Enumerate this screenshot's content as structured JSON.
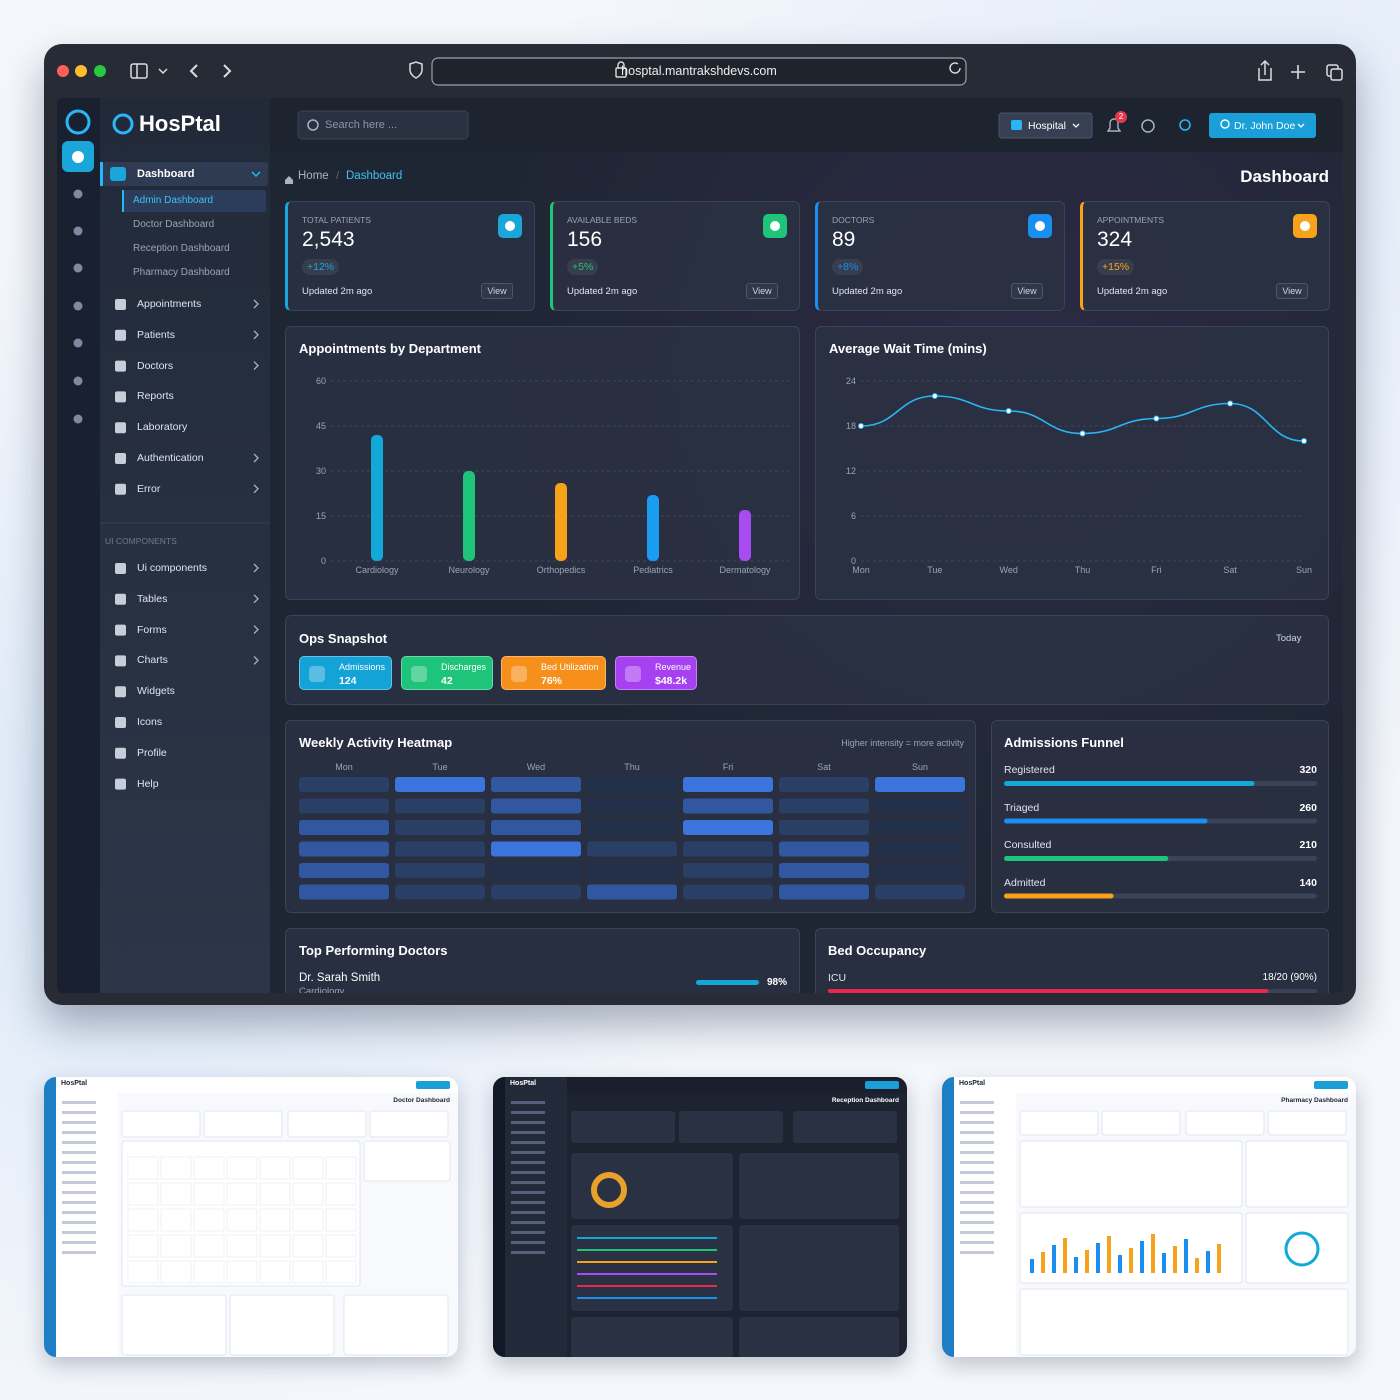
{
  "browser": {
    "url": "hosptal.mantrakshdevs.com"
  },
  "brand": "HosPtal",
  "sidebar": {
    "active": "Dashboard",
    "submenu": [
      "Admin Dashboard",
      "Doctor Dashboard",
      "Reception Dashboard",
      "Pharmacy Dashboard"
    ],
    "menu": [
      "Appointments",
      "Patients",
      "Doctors",
      "Reports",
      "Laboratory",
      "Authentication",
      "Error"
    ],
    "section": "UI COMPONENTS",
    "components": [
      "Ui components",
      "Tables",
      "Forms",
      "Charts",
      "Widgets",
      "Icons",
      "Profile",
      "Help"
    ]
  },
  "topbar": {
    "search": "Search here ...",
    "selector": "Hospital",
    "notifications": 2,
    "user": "Dr. John Doe"
  },
  "breadcrumb": [
    "Home",
    "Dashboard"
  ],
  "page_title": "Dashboard",
  "stats": [
    {
      "label": "TOTAL PATIENTS",
      "value": "2,543",
      "change": "+12%",
      "updated": "Updated 2m ago",
      "action": "View",
      "color": "#1aa6d9"
    },
    {
      "label": "AVAILABLE BEDS",
      "value": "156",
      "change": "+5%",
      "updated": "Updated 2m ago",
      "action": "View",
      "color": "#1ec47a"
    },
    {
      "label": "DOCTORS",
      "value": "89",
      "change": "+8%",
      "updated": "Updated 2m ago",
      "action": "View",
      "color": "#1a8ff0"
    },
    {
      "label": "APPOINTMENTS",
      "value": "324",
      "change": "+15%",
      "updated": "Updated 2m ago",
      "action": "View",
      "color": "#f7a21b"
    }
  ],
  "appointments_chart": {
    "type": "bar",
    "title": "Appointments by Department",
    "categories": [
      "Cardiology",
      "Neurology",
      "Orthopedics",
      "Pediatrics",
      "Dermatology"
    ],
    "values": [
      42,
      30,
      26,
      22,
      17
    ],
    "colors": [
      "#12a9d9",
      "#1ec47a",
      "#f7a21b",
      "#1a9cf0",
      "#a64cf0"
    ],
    "ylim": [
      0,
      60
    ],
    "yticks": [
      0,
      15,
      30,
      45,
      60
    ],
    "grid": true
  },
  "wait_chart": {
    "type": "line",
    "title": "Average Wait Time (mins)",
    "categories": [
      "Mon",
      "Tue",
      "Wed",
      "Thu",
      "Fri",
      "Sat",
      "Sun"
    ],
    "values": [
      18,
      22,
      20,
      17,
      19,
      21,
      16
    ],
    "color": "#29b6f6",
    "ylim": [
      0,
      24
    ],
    "yticks": [
      0,
      6,
      12,
      18,
      24
    ],
    "grid": true
  },
  "ops": {
    "title": "Ops Snapshot",
    "period": "Today",
    "items": [
      {
        "label": "Admissions",
        "value": "124",
        "color": "#14a3d6"
      },
      {
        "label": "Discharges",
        "value": "42",
        "color": "#1ec47a"
      },
      {
        "label": "Bed Utilization",
        "value": "76%",
        "color": "#f78f1b"
      },
      {
        "label": "Revenue",
        "value": "$48.2k",
        "color": "#a640f0"
      }
    ]
  },
  "heatmap": {
    "title": "Weekly Activity Heatmap",
    "note": "Higher intensity = more activity",
    "days": [
      "Mon",
      "Tue",
      "Wed",
      "Thu",
      "Fri",
      "Sat",
      "Sun"
    ],
    "values": [
      [
        2,
        4,
        3,
        1,
        4,
        2,
        4
      ],
      [
        2,
        2,
        3,
        1,
        3,
        2,
        1
      ],
      [
        3,
        2,
        3,
        1,
        4,
        2,
        1
      ],
      [
        3,
        2,
        4,
        2,
        2,
        3,
        1
      ],
      [
        3,
        2,
        1,
        1,
        2,
        3,
        1
      ],
      [
        3,
        2,
        2,
        3,
        2,
        3,
        2
      ]
    ]
  },
  "funnel": {
    "title": "Admissions Funnel",
    "xlim": [
      0,
      400
    ],
    "stages": [
      {
        "name": "Registered",
        "value": 320,
        "color": "#12a9d9"
      },
      {
        "name": "Triaged",
        "value": 260,
        "color": "#1a8ff0"
      },
      {
        "name": "Consulted",
        "value": 210,
        "color": "#1ec47a"
      },
      {
        "name": "Admitted",
        "value": 140,
        "color": "#f7a21b"
      }
    ]
  },
  "top_doctors": {
    "title": "Top Performing Doctors",
    "doctors": [
      {
        "name": "Dr. Sarah Smith",
        "department": "Cardiology",
        "value": 98,
        "value_label": "98%"
      }
    ]
  },
  "bed_occupancy": {
    "title": "Bed Occupancy",
    "wards": [
      {
        "name": "ICU",
        "value": 90,
        "value_label": "18/20 (90%)"
      }
    ]
  },
  "previews": [
    {
      "brand": "HosPtal",
      "title": "Doctor Dashboard",
      "theme": "light"
    },
    {
      "brand": "HosPtal",
      "title": "Reception Dashboard",
      "theme": "dark"
    },
    {
      "brand": "HosPtal",
      "title": "Pharmacy Dashboard",
      "theme": "light"
    }
  ]
}
